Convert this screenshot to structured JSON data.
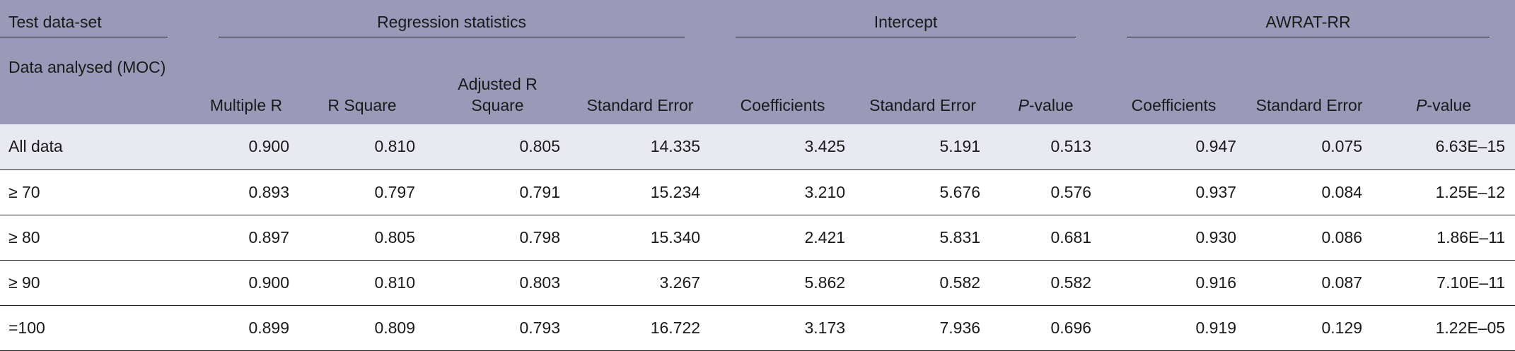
{
  "table": {
    "groups": [
      "Test data-set",
      "Regression statistics",
      "Intercept",
      "AWRAT-RR"
    ],
    "columns": [
      "Data analysed (MOC)",
      "Multiple R",
      "R Square",
      "Adjusted R Square",
      "Standard Error",
      "Coefficients",
      "Standard Error",
      "P-value",
      "Coefficients",
      "Standard Error",
      "P-value"
    ],
    "rows": [
      [
        "All data",
        "0.900",
        "0.810",
        "0.805",
        "14.335",
        "3.425",
        "5.191",
        "0.513",
        "0.947",
        "0.075",
        "6.63E–15"
      ],
      [
        "≥ 70",
        "0.893",
        "0.797",
        "0.791",
        "15.234",
        "3.210",
        "5.676",
        "0.576",
        "0.937",
        "0.084",
        "1.25E–12"
      ],
      [
        "≥ 80",
        "0.897",
        "0.805",
        "0.798",
        "15.340",
        "2.421",
        "5.831",
        "0.681",
        "0.930",
        "0.086",
        "1.86E–11"
      ],
      [
        "≥ 90",
        "0.900",
        "0.810",
        "0.803",
        "3.267",
        "5.862",
        "0.582",
        "0.582",
        "0.916",
        "0.087",
        "7.10E–11"
      ],
      [
        "=100",
        "0.899",
        "0.809",
        "0.793",
        "16.722",
        "3.173",
        "7.936",
        "0.696",
        "0.919",
        "0.129",
        "1.22E–05"
      ]
    ]
  }
}
